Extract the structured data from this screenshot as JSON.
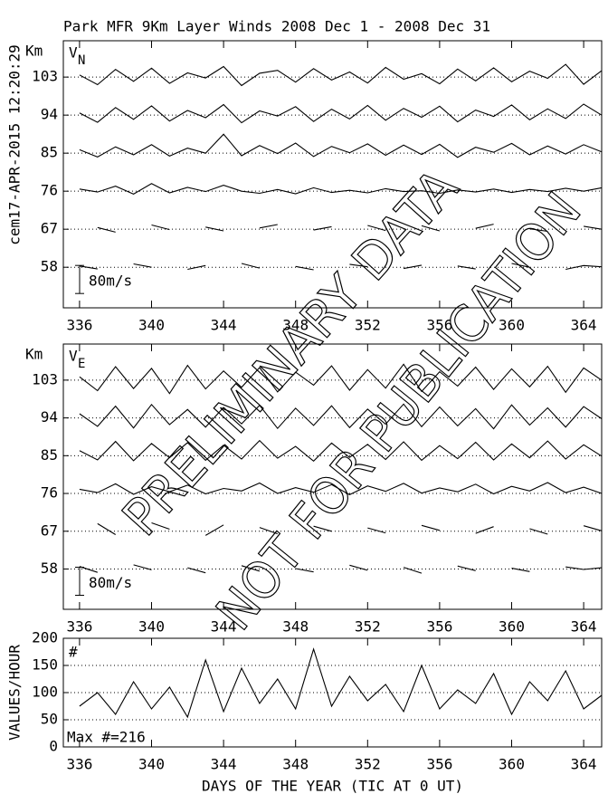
{
  "title": "Park MFR 9Km Layer Winds 2008 Dec  1 - 2008 Dec 31",
  "timestamp": "cem17-APR-2015 12:20:29",
  "watermark": [
    "PRELIMINARY DATA",
    "NOT FOR PUBLICATION"
  ],
  "chart_data": [
    {
      "type": "line",
      "unit_label": "Km",
      "component": "V",
      "subscript": "N",
      "scale_label": "80m/s",
      "xlim": [
        335.1,
        365.0
      ],
      "xticks": [
        336,
        340,
        344,
        348,
        352,
        356,
        360,
        364
      ],
      "ylim": [
        48.4,
        111.6
      ],
      "yticks": [
        58,
        67,
        76,
        85,
        94,
        103
      ],
      "grid": true,
      "x": [
        336,
        337,
        338,
        339,
        340,
        341,
        342,
        343,
        344,
        345,
        346,
        347,
        348,
        349,
        350,
        351,
        352,
        353,
        354,
        355,
        356,
        357,
        358,
        359,
        360,
        361,
        362,
        363,
        364,
        365
      ],
      "series": [
        {
          "color": "#000000",
          "values": [
            103.5,
            101.2,
            104.8,
            102.0,
            105.1,
            101.5,
            104.0,
            102.8,
            105.5,
            101.0,
            103.9,
            104.6,
            101.8,
            105.0,
            102.3,
            104.2,
            101.6,
            105.3,
            102.5,
            103.8,
            101.4,
            104.9,
            102.1,
            105.2,
            101.9,
            104.4,
            102.7,
            106.0,
            101.3,
            104.5
          ]
        },
        {
          "color": "#000000",
          "values": [
            94.5,
            92.3,
            95.8,
            93.0,
            96.2,
            92.6,
            95.1,
            93.4,
            96.5,
            92.2,
            95.0,
            93.8,
            96.0,
            92.5,
            95.4,
            93.1,
            96.3,
            92.8,
            95.6,
            93.5,
            96.1,
            92.4,
            95.2,
            93.7,
            96.4,
            92.9,
            95.5,
            93.2,
            96.6,
            94.0
          ]
        },
        {
          "color": "#000000",
          "values": [
            85.8,
            84.1,
            86.5,
            84.6,
            87.0,
            84.3,
            86.2,
            85.0,
            89.5,
            84.4,
            86.8,
            84.9,
            87.4,
            84.2,
            86.6,
            85.1,
            87.2,
            84.5,
            86.9,
            84.7,
            87.1,
            84.0,
            86.4,
            85.2,
            87.3,
            84.6,
            86.7,
            84.8,
            87.0,
            85.3
          ]
        },
        {
          "color": "#000000",
          "values": [
            76.5,
            75.8,
            77.2,
            75.3,
            77.8,
            75.6,
            76.9,
            75.9,
            77.4,
            76.0,
            75.5,
            76.4,
            75.4,
            76.8,
            75.7,
            76.2,
            75.6,
            76.6,
            75.9,
            76.1,
            75.5,
            76.3,
            75.8,
            76.5,
            75.7,
            76.4,
            75.9,
            76.7,
            76.0,
            76.8
          ]
        },
        {
          "color": "#000000",
          "values": [
            null,
            67.4,
            66.3,
            null,
            68.0,
            66.9,
            null,
            67.5,
            66.6,
            null,
            67.3,
            68.1,
            null,
            66.8,
            67.6,
            null,
            67.9,
            66.7,
            null,
            67.8,
            66.6,
            null,
            67.2,
            68.2,
            null,
            67.1,
            66.5,
            null,
            67.7,
            67.0
          ]
        },
        {
          "color": "#000000",
          "values": [
            58.3,
            57.6,
            null,
            58.8,
            58.0,
            null,
            57.5,
            58.4,
            null,
            58.9,
            57.8,
            null,
            58.2,
            57.4,
            null,
            58.7,
            58.1,
            null,
            57.7,
            58.5,
            null,
            58.3,
            57.6,
            null,
            58.9,
            58.0,
            null,
            57.5,
            58.4,
            58.1
          ]
        }
      ]
    },
    {
      "type": "line",
      "unit_label": "Km",
      "component": "V",
      "subscript": "E",
      "scale_label": "80m/s",
      "xlim": [
        335.1,
        365.0
      ],
      "xticks": [
        336,
        340,
        344,
        348,
        352,
        356,
        360,
        364
      ],
      "ylim": [
        48.4,
        111.6
      ],
      "yticks": [
        58,
        67,
        76,
        85,
        94,
        103
      ],
      "grid": true,
      "x": [
        336,
        337,
        338,
        339,
        340,
        341,
        342,
        343,
        344,
        345,
        346,
        347,
        348,
        349,
        350,
        351,
        352,
        353,
        354,
        355,
        356,
        357,
        358,
        359,
        360,
        361,
        362,
        363,
        364,
        365
      ],
      "series": [
        {
          "color": "#000000",
          "values": [
            103.8,
            100.5,
            106.2,
            101.0,
            105.8,
            99.8,
            106.5,
            100.9,
            105.2,
            101.3,
            106.0,
            100.2,
            104.9,
            101.8,
            106.4,
            100.6,
            105.5,
            101.1,
            106.8,
            100.3,
            105.0,
            101.6,
            106.1,
            100.8,
            105.7,
            101.4,
            106.3,
            100.1,
            105.9,
            103.0
          ]
        },
        {
          "color": "#000000",
          "values": [
            95.0,
            92.0,
            96.8,
            91.6,
            97.2,
            92.4,
            96.0,
            91.8,
            96.5,
            92.6,
            97.0,
            91.5,
            96.3,
            92.2,
            96.9,
            91.7,
            96.1,
            92.5,
            97.3,
            91.9,
            96.6,
            92.1,
            96.2,
            91.4,
            97.1,
            92.3,
            96.4,
            91.8,
            96.7,
            93.8
          ]
        },
        {
          "color": "#000000",
          "values": [
            86.2,
            84.0,
            88.4,
            83.8,
            87.9,
            84.5,
            88.1,
            83.9,
            87.5,
            84.2,
            88.6,
            84.4,
            87.2,
            83.7,
            88.0,
            84.6,
            87.7,
            84.1,
            88.3,
            83.9,
            87.4,
            84.3,
            88.2,
            84.0,
            87.8,
            84.5,
            88.5,
            84.2,
            87.6,
            84.9
          ]
        },
        {
          "color": "#000000",
          "values": [
            77.0,
            76.2,
            78.3,
            75.8,
            77.6,
            76.4,
            78.0,
            75.9,
            77.2,
            76.6,
            78.5,
            76.0,
            77.4,
            76.3,
            78.1,
            75.7,
            77.8,
            76.5,
            78.4,
            76.1,
            77.3,
            76.4,
            78.2,
            75.9,
            77.7,
            76.6,
            78.6,
            76.2,
            77.5,
            76.0
          ]
        },
        {
          "color": "#000000",
          "values": [
            null,
            68.8,
            66.2,
            null,
            69.0,
            67.5,
            null,
            66.0,
            68.5,
            null,
            67.9,
            66.4,
            null,
            68.2,
            67.0,
            null,
            67.8,
            66.6,
            null,
            68.4,
            67.2,
            null,
            66.5,
            68.1,
            null,
            67.6,
            66.3,
            null,
            68.3,
            67.1
          ]
        },
        {
          "color": "#000000",
          "values": [
            58.6,
            57.2,
            null,
            59.0,
            57.8,
            null,
            58.3,
            57.1,
            null,
            58.8,
            57.5,
            null,
            58.1,
            57.3,
            null,
            58.9,
            57.7,
            null,
            58.4,
            57.0,
            null,
            58.7,
            57.6,
            null,
            58.2,
            57.4,
            null,
            58.5,
            57.9,
            58.3
          ]
        }
      ]
    },
    {
      "type": "line",
      "marker": "#",
      "note": "Max #=216",
      "ylabel": "VALUES/HOUR",
      "xlabel": "DAYS OF THE YEAR (TIC AT 0 UT)",
      "xlim": [
        335.1,
        365.0
      ],
      "xticks": [
        336,
        340,
        344,
        348,
        352,
        356,
        360,
        364
      ],
      "ylim": [
        0,
        200
      ],
      "yticks": [
        0,
        50,
        100,
        150,
        200
      ],
      "grid": true,
      "x": [
        336,
        337,
        338,
        339,
        340,
        341,
        342,
        343,
        344,
        345,
        346,
        347,
        348,
        349,
        350,
        351,
        352,
        353,
        354,
        355,
        356,
        357,
        358,
        359,
        360,
        361,
        362,
        363,
        364,
        365
      ],
      "series": [
        {
          "color": "#000000",
          "values": [
            75,
            100,
            60,
            120,
            70,
            110,
            55,
            160,
            65,
            145,
            80,
            125,
            70,
            180,
            75,
            130,
            85,
            115,
            65,
            150,
            70,
            105,
            80,
            135,
            60,
            120,
            85,
            140,
            70,
            95
          ]
        }
      ]
    }
  ]
}
